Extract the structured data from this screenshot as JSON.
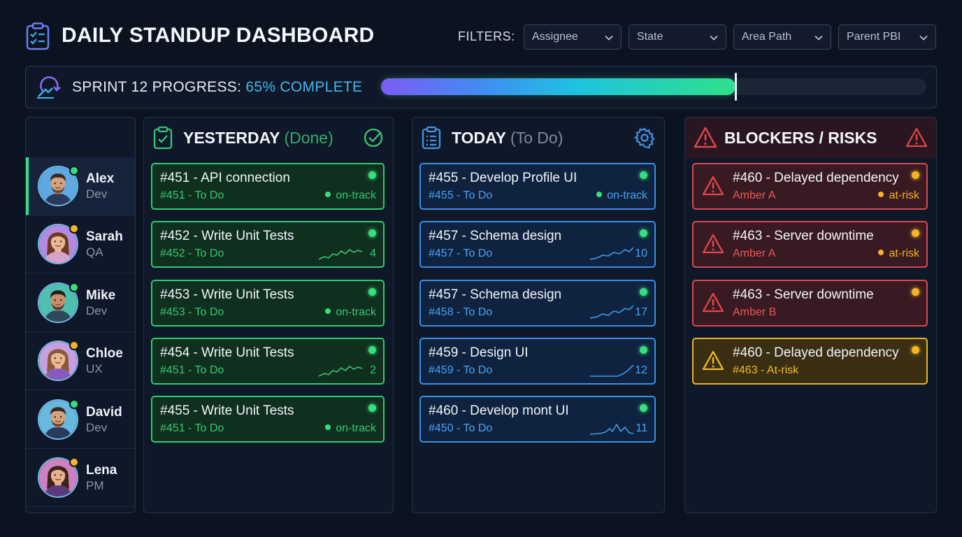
{
  "header": {
    "title": "DAILY STANDUP DASHBOARD",
    "filters_label": "FILTERS:",
    "filters": [
      {
        "label": "Assignee"
      },
      {
        "label": "State"
      },
      {
        "label": "Area Path"
      },
      {
        "label": "Parent PBI"
      }
    ]
  },
  "progress": {
    "label": "SPRINT 12 PROGRESS:",
    "value_text": "65% COMPLETE",
    "fraction": 0.65
  },
  "team": [
    {
      "name": "Alex",
      "role": "Dev",
      "status": "green",
      "active": true,
      "skin": "#d6a27c",
      "hair": "#3a2a1e",
      "shirt": "#2a3a5c",
      "bg": "#5fa8e0"
    },
    {
      "name": "Sarah",
      "role": "QA",
      "status": "amber",
      "active": false,
      "skin": "#eab894",
      "hair": "#6a3a22",
      "shirt": "#d7a3c8",
      "bg": "#b48ae0"
    },
    {
      "name": "Mike",
      "role": "Dev",
      "status": "green",
      "active": false,
      "skin": "#c98e6c",
      "hair": "#2a1e18",
      "shirt": "#2e4a5a",
      "bg": "#4fc0b0"
    },
    {
      "name": "Chloe",
      "role": "UX",
      "status": "amber",
      "active": false,
      "skin": "#eab894",
      "hair": "#8a5a38",
      "shirt": "#8a5ab8",
      "bg": "#c8a0e0"
    },
    {
      "name": "David",
      "role": "Dev",
      "status": "green",
      "active": false,
      "skin": "#d6a27c",
      "hair": "#3a2a1e",
      "shirt": "#2a3a5c",
      "bg": "#6ab8e0"
    },
    {
      "name": "Lena",
      "role": "PM",
      "status": "amber",
      "active": false,
      "skin": "#e8b08c",
      "hair": "#3a2418",
      "shirt": "#5a3a7a",
      "bg": "#d080c0"
    }
  ],
  "columns": {
    "yesterday": {
      "title": "YESTERDAY",
      "subtitle": "(Done)",
      "cards": [
        {
          "title": "#451 - API connection",
          "sub": "#451 - To Do",
          "status": "on-track"
        },
        {
          "title": "#452 - Write Unit Tests",
          "sub": "#452 - To Do",
          "count": "4"
        },
        {
          "title": "#453 - Write Unit Tests",
          "sub": "#453 - To Do",
          "status": "on-track"
        },
        {
          "title": "#454 - Write Unit Tests",
          "sub": "#451 - To Do",
          "count": "2"
        },
        {
          "title": "#455 - Write Unit Tests",
          "sub": "#451 - To Do",
          "status": "on-track"
        }
      ]
    },
    "today": {
      "title": "TODAY",
      "subtitle": "(To Do)",
      "cards": [
        {
          "title": "#455 - Develop Profile UI",
          "sub": "#455 - To Do",
          "status": "on-track"
        },
        {
          "title": "#457 - Schema design",
          "sub": "#457 - To Do",
          "count": "10"
        },
        {
          "title": "#457 - Schema design",
          "sub": "#458 - To Do",
          "count": "17"
        },
        {
          "title": "#459 - Design UI",
          "sub": "#459 - To Do",
          "count": "12"
        },
        {
          "title": "#460 - Develop mont UI",
          "sub": "#450 - To Do",
          "count": "11"
        }
      ]
    },
    "blockers": {
      "title": "BLOCKERS / RISKS",
      "cards": [
        {
          "title": "#460 - Delayed dependency",
          "sub": "Amber A",
          "status": "at-risk",
          "tone": "red"
        },
        {
          "title": "#463 - Server downtime",
          "sub": "Amber A",
          "status": "at-risk",
          "tone": "red"
        },
        {
          "title": "#463 - Server downtime",
          "sub": "Amber B",
          "tone": "red"
        },
        {
          "title": "#460 - Delayed dependency",
          "sub": "#463 - At-risk",
          "tone": "amber"
        }
      ]
    }
  },
  "colors": {
    "green_accent": "#2ecc71",
    "blue_accent": "#3b8ee8",
    "red_accent": "#d84a4f",
    "amber_accent": "#e9b526",
    "status_online": "#35e07c",
    "status_away": "#f5b325"
  }
}
